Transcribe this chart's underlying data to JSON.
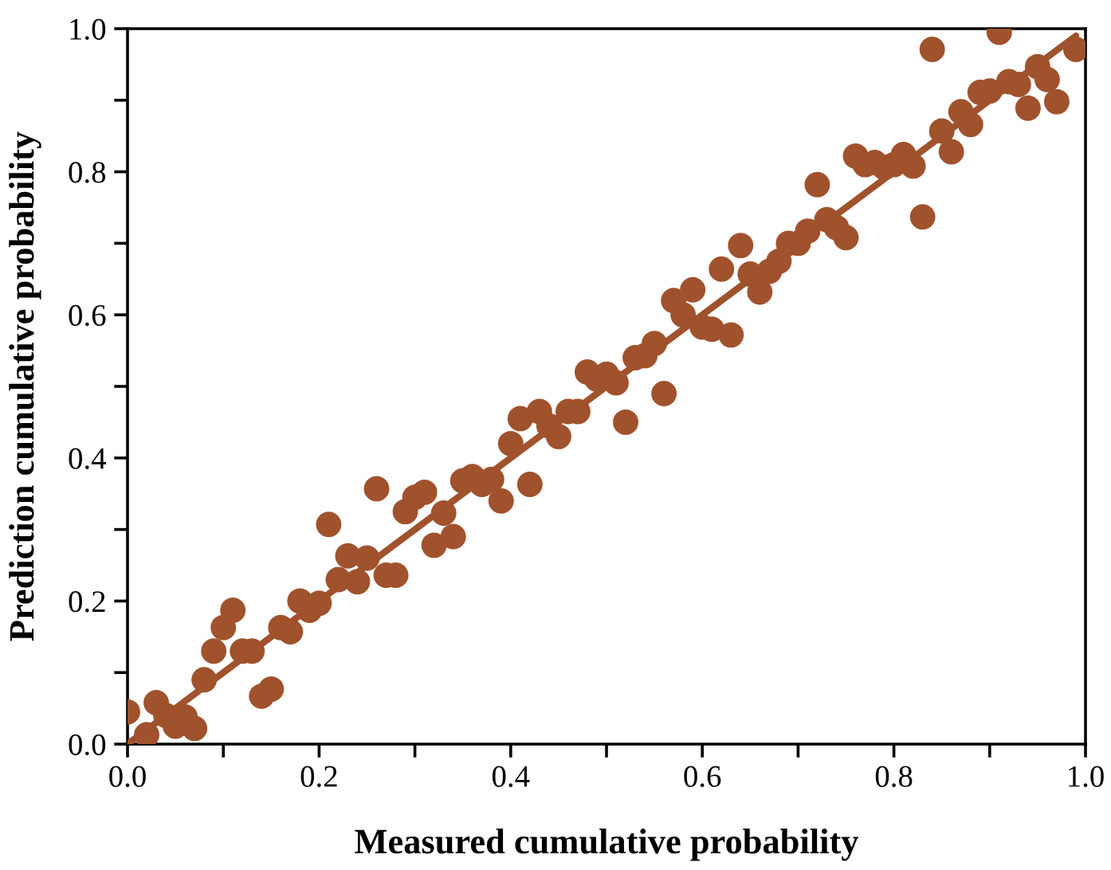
{
  "chart_data": {
    "type": "scatter",
    "xlabel": "Measured cumulative probability",
    "ylabel": "Prediction cumulative probability",
    "xlim": [
      0,
      1
    ],
    "ylim": [
      0,
      1
    ],
    "xticks": [
      {
        "value": 0.0,
        "label": "0.0"
      },
      {
        "value": 0.1,
        "label": null
      },
      {
        "value": 0.2,
        "label": "0.2"
      },
      {
        "value": 0.3,
        "label": null
      },
      {
        "value": 0.4,
        "label": "0.4"
      },
      {
        "value": 0.5,
        "label": null
      },
      {
        "value": 0.6,
        "label": "0.6"
      },
      {
        "value": 0.7,
        "label": null
      },
      {
        "value": 0.8,
        "label": "0.8"
      },
      {
        "value": 0.9,
        "label": null
      },
      {
        "value": 1.0,
        "label": "1.0"
      }
    ],
    "yticks": [
      {
        "value": 0.0,
        "label": "0.0"
      },
      {
        "value": 0.1,
        "label": null
      },
      {
        "value": 0.2,
        "label": "0.2"
      },
      {
        "value": 0.3,
        "label": null
      },
      {
        "value": 0.4,
        "label": "0.4"
      },
      {
        "value": 0.5,
        "label": null
      },
      {
        "value": 0.6,
        "label": "0.6"
      },
      {
        "value": 0.7,
        "label": null
      },
      {
        "value": 0.8,
        "label": "0.8"
      },
      {
        "value": 0.9,
        "label": null
      },
      {
        "value": 1.0,
        "label": "1.0"
      }
    ],
    "grid": false,
    "legend": false,
    "marker": "circle",
    "series": [
      {
        "color": "#a0522d",
        "x": [
          0.0,
          0.02,
          0.03,
          0.04,
          0.05,
          0.06,
          0.07,
          0.08,
          0.09,
          0.1,
          0.11,
          0.12,
          0.13,
          0.14,
          0.15,
          0.16,
          0.17,
          0.18,
          0.19,
          0.2,
          0.21,
          0.22,
          0.23,
          0.24,
          0.25,
          0.26,
          0.27,
          0.28,
          0.29,
          0.3,
          0.31,
          0.32,
          0.33,
          0.34,
          0.35,
          0.36,
          0.37,
          0.38,
          0.39,
          0.4,
          0.41,
          0.42,
          0.43,
          0.44,
          0.45,
          0.46,
          0.47,
          0.48,
          0.49,
          0.5,
          0.51,
          0.52,
          0.53,
          0.54,
          0.55,
          0.56,
          0.57,
          0.58,
          0.59,
          0.6,
          0.61,
          0.62,
          0.63,
          0.64,
          0.65,
          0.66,
          0.67,
          0.68,
          0.69,
          0.7,
          0.71,
          0.72,
          0.73,
          0.74,
          0.75,
          0.76,
          0.77,
          0.78,
          0.79,
          0.8,
          0.81,
          0.82,
          0.83,
          0.84,
          0.85,
          0.86,
          0.87,
          0.88,
          0.89,
          0.9,
          0.91,
          0.92,
          0.93,
          0.94,
          0.95,
          0.96,
          0.97,
          0.99
        ],
        "values": [
          0.045,
          0.013,
          0.058,
          0.04,
          0.025,
          0.038,
          0.022,
          0.09,
          0.13,
          0.163,
          0.187,
          0.13,
          0.13,
          0.067,
          0.077,
          0.163,
          0.157,
          0.2,
          0.187,
          0.197,
          0.307,
          0.23,
          0.263,
          0.227,
          0.26,
          0.357,
          0.236,
          0.236,
          0.325,
          0.345,
          0.352,
          0.278,
          0.323,
          0.29,
          0.368,
          0.374,
          0.363,
          0.37,
          0.34,
          0.42,
          0.455,
          0.363,
          0.465,
          0.445,
          0.43,
          0.465,
          0.465,
          0.52,
          0.51,
          0.517,
          0.505,
          0.45,
          0.54,
          0.543,
          0.56,
          0.49,
          0.62,
          0.6,
          0.635,
          0.583,
          0.58,
          0.664,
          0.572,
          0.697,
          0.657,
          0.632,
          0.661,
          0.675,
          0.7,
          0.7,
          0.717,
          0.782,
          0.733,
          0.722,
          0.708,
          0.822,
          0.81,
          0.813,
          0.806,
          0.81,
          0.824,
          0.808,
          0.737,
          0.971,
          0.857,
          0.828,
          0.884,
          0.866,
          0.911,
          0.913,
          0.995,
          0.926,
          0.922,
          0.889,
          0.947,
          0.929,
          0.898,
          0.971
        ]
      },
      {
        "type": "line",
        "color": "#a0522d",
        "marker": "none",
        "line_style": "solid",
        "x": [
          0,
          0.99
        ],
        "values": [
          0,
          0.99
        ]
      }
    ]
  }
}
